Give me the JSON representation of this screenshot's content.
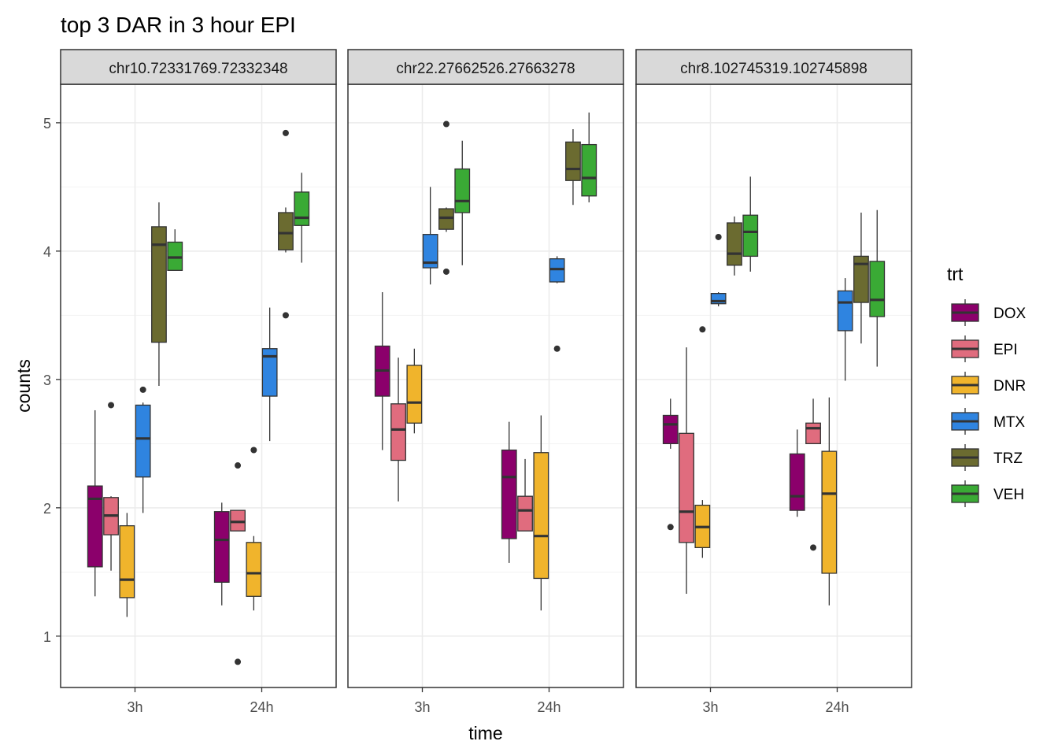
{
  "chart_data": {
    "type": "boxplot",
    "title": "top 3 DAR in 3 hour EPI",
    "xlabel": "time",
    "ylabel": "counts",
    "ylim": [
      0.6,
      5.3
    ],
    "yticks": [
      1,
      2,
      3,
      4,
      5
    ],
    "categories": [
      "3h",
      "24h"
    ],
    "grid": true,
    "legend": {
      "title": "trt",
      "position": "right",
      "entries": [
        {
          "name": "DOX",
          "color": "#8B006B"
        },
        {
          "name": "EPI",
          "color": "#E06C7E"
        },
        {
          "name": "DNR",
          "color": "#F0B42C"
        },
        {
          "name": "MTX",
          "color": "#2F84E0"
        },
        {
          "name": "TRZ",
          "color": "#6B6B30"
        },
        {
          "name": "VEH",
          "color": "#3AAA35"
        }
      ]
    },
    "panels": [
      {
        "label": "chr10.72331769.72332348",
        "groups": {
          "3h": [
            {
              "trt": "DOX",
              "min": 1.31,
              "q1": 1.54,
              "median": 2.07,
              "q3": 2.17,
              "max": 2.76,
              "outliers": []
            },
            {
              "trt": "EPI",
              "min": 1.51,
              "q1": 1.79,
              "median": 1.94,
              "q3": 2.08,
              "max": 2.09,
              "outliers": [
                2.8
              ]
            },
            {
              "trt": "DNR",
              "min": 1.15,
              "q1": 1.3,
              "median": 1.44,
              "q3": 1.86,
              "max": 1.96,
              "outliers": []
            },
            {
              "trt": "MTX",
              "min": 1.96,
              "q1": 2.24,
              "median": 2.54,
              "q3": 2.8,
              "max": 2.82,
              "outliers": [
                2.92
              ]
            },
            {
              "trt": "TRZ",
              "min": 2.95,
              "q1": 3.29,
              "median": 4.05,
              "q3": 4.19,
              "max": 4.38,
              "outliers": []
            },
            {
              "trt": "VEH",
              "min": 3.85,
              "q1": 3.85,
              "median": 3.95,
              "q3": 4.07,
              "max": 4.17,
              "outliers": []
            }
          ],
          "24h": [
            {
              "trt": "DOX",
              "min": 1.24,
              "q1": 1.42,
              "median": 1.75,
              "q3": 1.97,
              "max": 2.04,
              "outliers": []
            },
            {
              "trt": "EPI",
              "min": 1.82,
              "q1": 1.82,
              "median": 1.89,
              "q3": 1.98,
              "max": 1.98,
              "outliers": [
                2.33,
                0.8
              ]
            },
            {
              "trt": "DNR",
              "min": 1.2,
              "q1": 1.31,
              "median": 1.49,
              "q3": 1.73,
              "max": 1.78,
              "outliers": [
                2.45
              ]
            },
            {
              "trt": "MTX",
              "min": 2.52,
              "q1": 2.87,
              "median": 3.18,
              "q3": 3.24,
              "max": 3.56,
              "outliers": []
            },
            {
              "trt": "TRZ",
              "min": 3.99,
              "q1": 4.01,
              "median": 4.14,
              "q3": 4.3,
              "max": 4.34,
              "outliers": [
                4.92,
                3.5
              ]
            },
            {
              "trt": "VEH",
              "min": 3.91,
              "q1": 4.2,
              "median": 4.26,
              "q3": 4.46,
              "max": 4.61,
              "outliers": []
            }
          ]
        }
      },
      {
        "label": "chr22.27662526.27663278",
        "groups": {
          "3h": [
            {
              "trt": "DOX",
              "min": 2.45,
              "q1": 2.87,
              "median": 3.07,
              "q3": 3.26,
              "max": 3.68,
              "outliers": []
            },
            {
              "trt": "EPI",
              "min": 2.05,
              "q1": 2.37,
              "median": 2.61,
              "q3": 2.81,
              "max": 3.17,
              "outliers": []
            },
            {
              "trt": "DNR",
              "min": 2.58,
              "q1": 2.66,
              "median": 2.82,
              "q3": 3.11,
              "max": 3.24,
              "outliers": []
            },
            {
              "trt": "MTX",
              "min": 3.74,
              "q1": 3.87,
              "median": 3.91,
              "q3": 4.13,
              "max": 4.5,
              "outliers": []
            },
            {
              "trt": "TRZ",
              "min": 4.15,
              "q1": 4.17,
              "median": 4.26,
              "q3": 4.33,
              "max": 4.34,
              "outliers": [
                4.99,
                3.84
              ]
            },
            {
              "trt": "VEH",
              "min": 3.89,
              "q1": 4.3,
              "median": 4.39,
              "q3": 4.64,
              "max": 4.86,
              "outliers": []
            }
          ],
          "24h": [
            {
              "trt": "DOX",
              "min": 1.57,
              "q1": 1.76,
              "median": 2.24,
              "q3": 2.45,
              "max": 2.67,
              "outliers": []
            },
            {
              "trt": "EPI",
              "min": 1.82,
              "q1": 1.82,
              "median": 1.98,
              "q3": 2.09,
              "max": 2.38,
              "outliers": []
            },
            {
              "trt": "DNR",
              "min": 1.2,
              "q1": 1.45,
              "median": 1.78,
              "q3": 2.43,
              "max": 2.72,
              "outliers": []
            },
            {
              "trt": "MTX",
              "min": 3.75,
              "q1": 3.76,
              "median": 3.86,
              "q3": 3.94,
              "max": 3.96,
              "outliers": [
                3.24
              ]
            },
            {
              "trt": "TRZ",
              "min": 4.36,
              "q1": 4.55,
              "median": 4.64,
              "q3": 4.85,
              "max": 4.95,
              "outliers": []
            },
            {
              "trt": "VEH",
              "min": 4.38,
              "q1": 4.43,
              "median": 4.57,
              "q3": 4.83,
              "max": 5.08,
              "outliers": []
            }
          ]
        }
      },
      {
        "label": "chr8.102745319.102745898",
        "groups": {
          "3h": [
            {
              "trt": "DOX",
              "min": 2.46,
              "q1": 2.5,
              "median": 2.65,
              "q3": 2.72,
              "max": 2.85,
              "outliers": [
                1.85
              ]
            },
            {
              "trt": "EPI",
              "min": 1.33,
              "q1": 1.73,
              "median": 1.97,
              "q3": 2.58,
              "max": 3.25,
              "outliers": []
            },
            {
              "trt": "DNR",
              "min": 1.61,
              "q1": 1.69,
              "median": 1.85,
              "q3": 2.02,
              "max": 2.06,
              "outliers": [
                3.39
              ]
            },
            {
              "trt": "MTX",
              "min": 3.57,
              "q1": 3.59,
              "median": 3.61,
              "q3": 3.67,
              "max": 3.68,
              "outliers": [
                4.11
              ]
            },
            {
              "trt": "TRZ",
              "min": 3.81,
              "q1": 3.89,
              "median": 3.98,
              "q3": 4.22,
              "max": 4.27,
              "outliers": []
            },
            {
              "trt": "VEH",
              "min": 3.84,
              "q1": 3.96,
              "median": 4.15,
              "q3": 4.28,
              "max": 4.58,
              "outliers": []
            }
          ],
          "24h": [
            {
              "trt": "DOX",
              "min": 1.93,
              "q1": 1.98,
              "median": 2.09,
              "q3": 2.42,
              "max": 2.61,
              "outliers": []
            },
            {
              "trt": "EPI",
              "min": 2.5,
              "q1": 2.5,
              "median": 2.62,
              "q3": 2.66,
              "max": 2.85,
              "outliers": [
                1.69
              ]
            },
            {
              "trt": "DNR",
              "min": 1.24,
              "q1": 1.49,
              "median": 2.11,
              "q3": 2.44,
              "max": 2.86,
              "outliers": []
            },
            {
              "trt": "MTX",
              "min": 2.99,
              "q1": 3.38,
              "median": 3.6,
              "q3": 3.69,
              "max": 3.79,
              "outliers": []
            },
            {
              "trt": "TRZ",
              "min": 3.28,
              "q1": 3.6,
              "median": 3.9,
              "q3": 3.96,
              "max": 4.3,
              "outliers": []
            },
            {
              "trt": "VEH",
              "min": 3.1,
              "q1": 3.49,
              "median": 3.62,
              "q3": 3.92,
              "max": 4.32,
              "outliers": []
            }
          ]
        }
      }
    ]
  }
}
